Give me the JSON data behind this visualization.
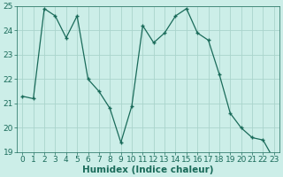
{
  "x": [
    0,
    1,
    2,
    3,
    4,
    5,
    6,
    7,
    8,
    9,
    10,
    11,
    12,
    13,
    14,
    15,
    16,
    17,
    18,
    19,
    20,
    21,
    22,
    23
  ],
  "y": [
    21.3,
    21.2,
    24.9,
    24.6,
    23.7,
    24.6,
    22.0,
    21.5,
    20.8,
    19.4,
    20.9,
    24.2,
    23.5,
    23.9,
    24.6,
    24.9,
    23.9,
    23.6,
    22.2,
    20.6,
    20.0,
    19.6,
    19.5,
    18.7
  ],
  "line_color": "#1a6b5a",
  "marker": "+",
  "marker_size": 3,
  "bg_color": "#cceee8",
  "grid_color": "#aad4cc",
  "xlabel": "Humidex (Indice chaleur)",
  "ylim": [
    19,
    25
  ],
  "xlim": [
    -0.5,
    23.5
  ],
  "yticks": [
    19,
    20,
    21,
    22,
    23,
    24,
    25
  ],
  "xticks": [
    0,
    1,
    2,
    3,
    4,
    5,
    6,
    7,
    8,
    9,
    10,
    11,
    12,
    13,
    14,
    15,
    16,
    17,
    18,
    19,
    20,
    21,
    22,
    23
  ],
  "tick_fontsize": 6.5,
  "xlabel_fontsize": 7.5
}
